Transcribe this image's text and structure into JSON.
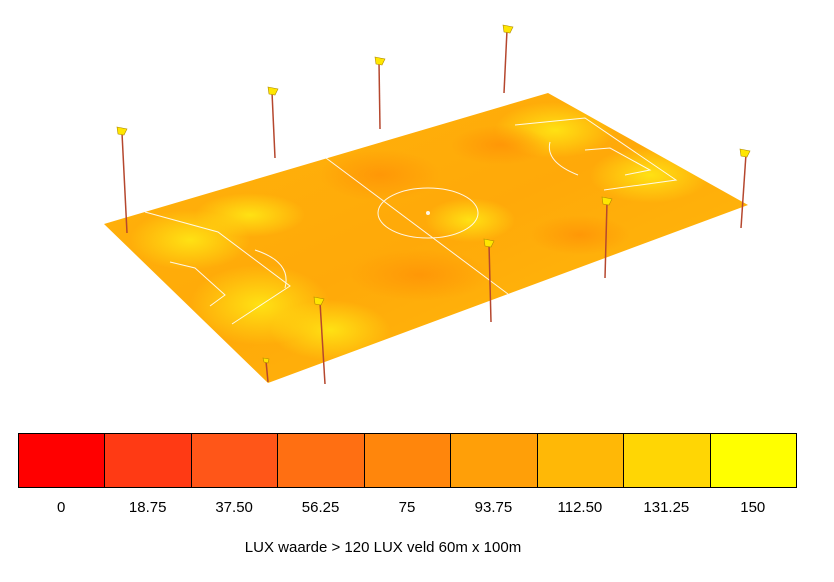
{
  "legend": {
    "title": "",
    "swatches": [
      {
        "color": "#ff0000",
        "label": "0"
      },
      {
        "color": "#ff3a14",
        "label": "18.75"
      },
      {
        "color": "#ff5618",
        "label": "37.50"
      },
      {
        "color": "#ff6f12",
        "label": "56.25"
      },
      {
        "color": "#ff860c",
        "label": "75"
      },
      {
        "color": "#ff9f08",
        "label": "93.75"
      },
      {
        "color": "#ffb806",
        "label": "112.50"
      },
      {
        "color": "#ffd604",
        "label": "131.25"
      },
      {
        "color": "#ffff00",
        "label": "150"
      }
    ]
  },
  "caption": "LUX waarde > 120 LUX veld 60m x 100m",
  "colors": {
    "field_base": "#ffb40a",
    "field_bright": "#ffd60e",
    "field_dark": "#ff9a08",
    "pole": "#b5472e",
    "lamp": "#ffe600",
    "lines": "#ffffff"
  }
}
